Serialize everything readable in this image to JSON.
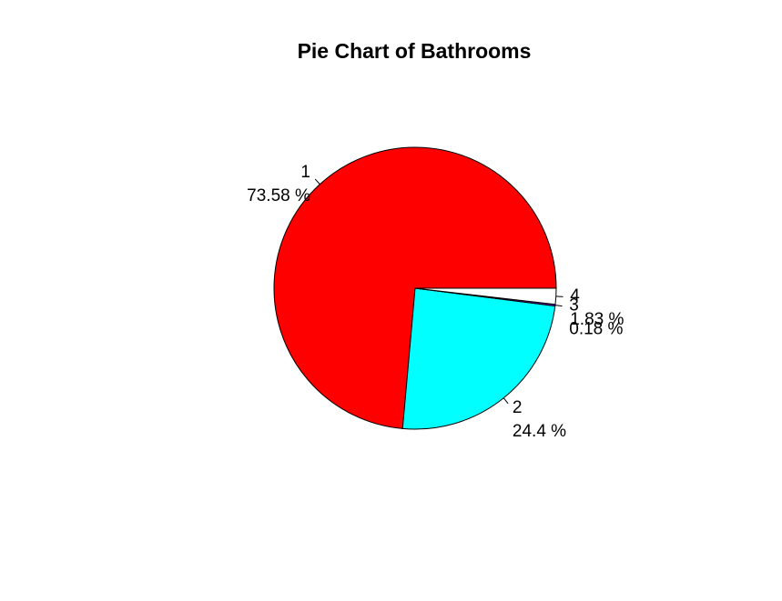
{
  "chart_data": {
    "type": "pie",
    "title": "Pie Chart of Bathrooms",
    "slices": [
      {
        "label": "1",
        "pct_label": "73.58  %",
        "value": 73.58,
        "color": "#FF0000"
      },
      {
        "label": "2",
        "pct_label": "24.4  %",
        "value": 24.4,
        "color": "#00FFFF"
      },
      {
        "label": "3",
        "pct_label": "0.18  %",
        "value": 0.18,
        "color": "#8000FF"
      },
      {
        "label": "4",
        "pct_label": "1.83  %",
        "value": 1.83,
        "color": "#FFFFFF"
      }
    ],
    "start_angle_deg": 0,
    "direction": "counterclockwise",
    "border_color": "#000000"
  }
}
